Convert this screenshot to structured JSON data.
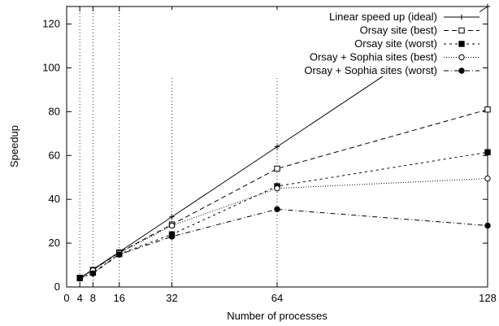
{
  "chart_data": {
    "type": "line",
    "title": "",
    "xlabel": "Number of processes",
    "ylabel": "Speedup",
    "xlim": [
      0,
      128
    ],
    "ylim": [
      0,
      128
    ],
    "x_ticks": [
      0,
      4,
      8,
      16,
      32,
      64,
      128
    ],
    "y_ticks": [
      0,
      20,
      40,
      60,
      80,
      100,
      120
    ],
    "grid": "vertical dotted lines at x ticks",
    "legend_position": "top-right",
    "series": [
      {
        "name": "Linear speed up (ideal)",
        "x": [
          4,
          8,
          16,
          32,
          64,
          128
        ],
        "y": [
          4,
          8,
          16,
          32,
          64,
          128
        ],
        "marker": "plus",
        "dash": "solid"
      },
      {
        "name": "Orsay site (best)",
        "x": [
          4,
          8,
          16,
          32,
          64,
          128
        ],
        "y": [
          4.2,
          7.8,
          15.8,
          28.5,
          54,
          81
        ],
        "marker": "open-square",
        "dash": "dashed"
      },
      {
        "name": "Orsay site (worst)",
        "x": [
          4,
          8,
          16,
          32,
          64,
          128
        ],
        "y": [
          4.0,
          6.5,
          15.0,
          24.0,
          46,
          61.5
        ],
        "marker": "filled-square",
        "dash": "short-dashed"
      },
      {
        "name": "Orsay + Sophia sites (best)",
        "x": [
          4,
          8,
          16,
          32,
          64,
          128
        ],
        "y": [
          4.1,
          7.6,
          15.5,
          28.0,
          45,
          49.5
        ],
        "marker": "open-circle",
        "dash": "dotted"
      },
      {
        "name": "Orsay + Sophia sites (worst)",
        "x": [
          4,
          8,
          16,
          32,
          64,
          128
        ],
        "y": [
          3.9,
          6.2,
          14.8,
          23.0,
          35.5,
          28
        ],
        "marker": "filled-circle",
        "dash": "dash-dot"
      }
    ]
  }
}
